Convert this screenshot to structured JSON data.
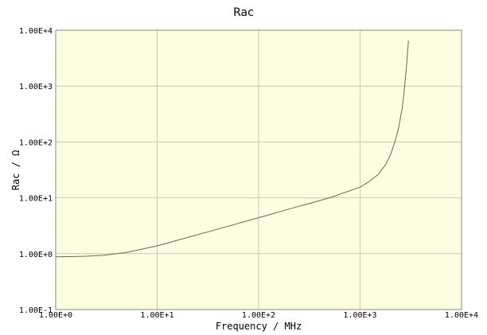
{
  "chart_data": {
    "type": "line",
    "title": "Rac",
    "xlabel": "Frequency / MHz",
    "ylabel": "Rac / Ω",
    "xscale": "log",
    "yscale": "log",
    "xlim": [
      1,
      10000
    ],
    "ylim": [
      0.1,
      10000
    ],
    "x_ticks": [
      "1.00E+0",
      "1.00E+1",
      "1.00E+2",
      "1.00E+3",
      "1.00E+4"
    ],
    "y_ticks": [
      "1.00E-1",
      "1.00E+0",
      "1.00E+1",
      "1.00E+2",
      "1.00E+3",
      "1.00E+4"
    ],
    "grid": true,
    "plot_background": "#fdfde1",
    "line_color": "#5a6e5a",
    "grid_color": "#c8c8b4",
    "series": [
      {
        "x": [
          1,
          1.5,
          2,
          3,
          5,
          10,
          20,
          50,
          100,
          200,
          500,
          1000,
          1200,
          1500,
          1800,
          2000,
          2200,
          2400,
          2600,
          2700,
          2800,
          2900,
          3000
        ],
        "y": [
          0.88,
          0.89,
          0.9,
          0.94,
          1.05,
          1.38,
          1.95,
          3.1,
          4.4,
          6.3,
          10.0,
          15.5,
          19.0,
          26.0,
          40.0,
          60.0,
          100.0,
          180.0,
          400.0,
          700.0,
          1400.0,
          3000.0,
          6500.0
        ]
      }
    ]
  }
}
